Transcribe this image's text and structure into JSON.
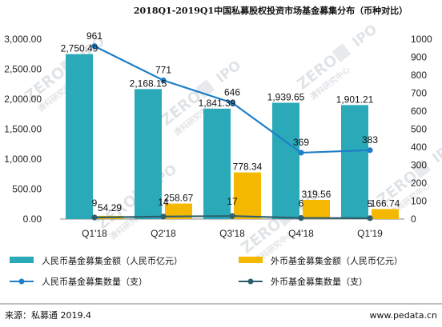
{
  "chart_data": {
    "type": "bar",
    "title": "2018Q1-2019Q1中国私募股权投资市场基金募集分布（币种对比）",
    "categories": [
      "Q1'18",
      "Q2'18",
      "Q3'18",
      "Q4'18",
      "Q1'19"
    ],
    "y_left": {
      "ylim": [
        0,
        3000
      ],
      "ticks": [
        "0.00",
        "500.00",
        "1,000.00",
        "1,500.00",
        "2,000.00",
        "2,500.00",
        "3,000.00"
      ]
    },
    "y_right": {
      "ylim": [
        0,
        1000
      ],
      "ticks": [
        "0",
        "100",
        "200",
        "300",
        "400",
        "500",
        "600",
        "700",
        "800",
        "900",
        "1000"
      ]
    },
    "series": [
      {
        "name": "人民币基金募集金额（人民币亿元）",
        "type": "bar",
        "axis": "left",
        "color": "#2aa9b8",
        "values": [
          2750.49,
          2168.15,
          1841.39,
          1939.65,
          1901.21
        ],
        "labels": [
          "2,750.49",
          "2,168.15",
          "1,841.39",
          "1,939.65",
          "1,901.21"
        ]
      },
      {
        "name": "外币基金募集金额（人民币亿元）",
        "type": "bar",
        "axis": "left",
        "color": "#f5b800",
        "values": [
          54.29,
          258.67,
          778.34,
          319.56,
          166.74
        ],
        "labels": [
          "54.29",
          "258.67",
          "778.34",
          "319.56",
          "166.74"
        ]
      },
      {
        "name": "人民币基金募集数量（支）",
        "type": "line",
        "axis": "right",
        "color": "#1e7fc8",
        "values": [
          961,
          771,
          646,
          369,
          383
        ],
        "labels": [
          "961",
          "771",
          "646",
          "369",
          "383"
        ]
      },
      {
        "name": "外币基金募集数量（支）",
        "type": "line",
        "axis": "right",
        "color": "#2e5f6e",
        "values": [
          9,
          14,
          17,
          6,
          5
        ],
        "labels": [
          "9",
          "14",
          "17",
          "6",
          "5"
        ]
      }
    ],
    "legend_position": "bottom",
    "grid": false
  },
  "watermark": "ZERO",
  "watermark_tag": "IPO",
  "watermark_cn": "清科研究中心",
  "footer": {
    "source": "来源：私募通 2019.4",
    "url": "www.pedata.cn"
  }
}
